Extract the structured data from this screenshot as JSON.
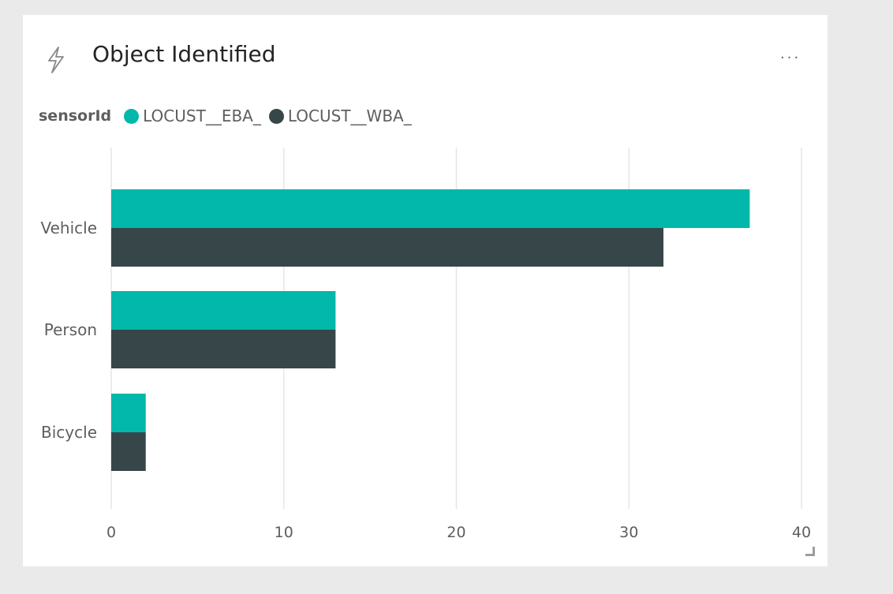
{
  "tile": {
    "title": "Object Identified",
    "icon": "lightning-bolt-icon",
    "menu_icon": "ellipsis-icon",
    "menu_label": "..."
  },
  "legend": {
    "title": "sensorId",
    "items": [
      {
        "label": "LOCUST__EBA_",
        "color": "#01b8aa"
      },
      {
        "label": "LOCUST__WBA_",
        "color": "#374649"
      }
    ]
  },
  "chart_data": {
    "type": "bar",
    "orientation": "horizontal",
    "title": "Object Identified",
    "categories": [
      "Vehicle",
      "Person",
      "Bicycle"
    ],
    "series": [
      {
        "name": "LOCUST__EBA_",
        "color": "#01b8aa",
        "values": [
          37,
          13,
          2
        ]
      },
      {
        "name": "LOCUST__WBA_",
        "color": "#374649",
        "values": [
          32,
          13,
          2
        ]
      }
    ],
    "x_ticks": [
      "0",
      "10",
      "20",
      "30",
      "40"
    ],
    "xlim": [
      0,
      40
    ],
    "grid": true,
    "legend_position": "top-left"
  }
}
